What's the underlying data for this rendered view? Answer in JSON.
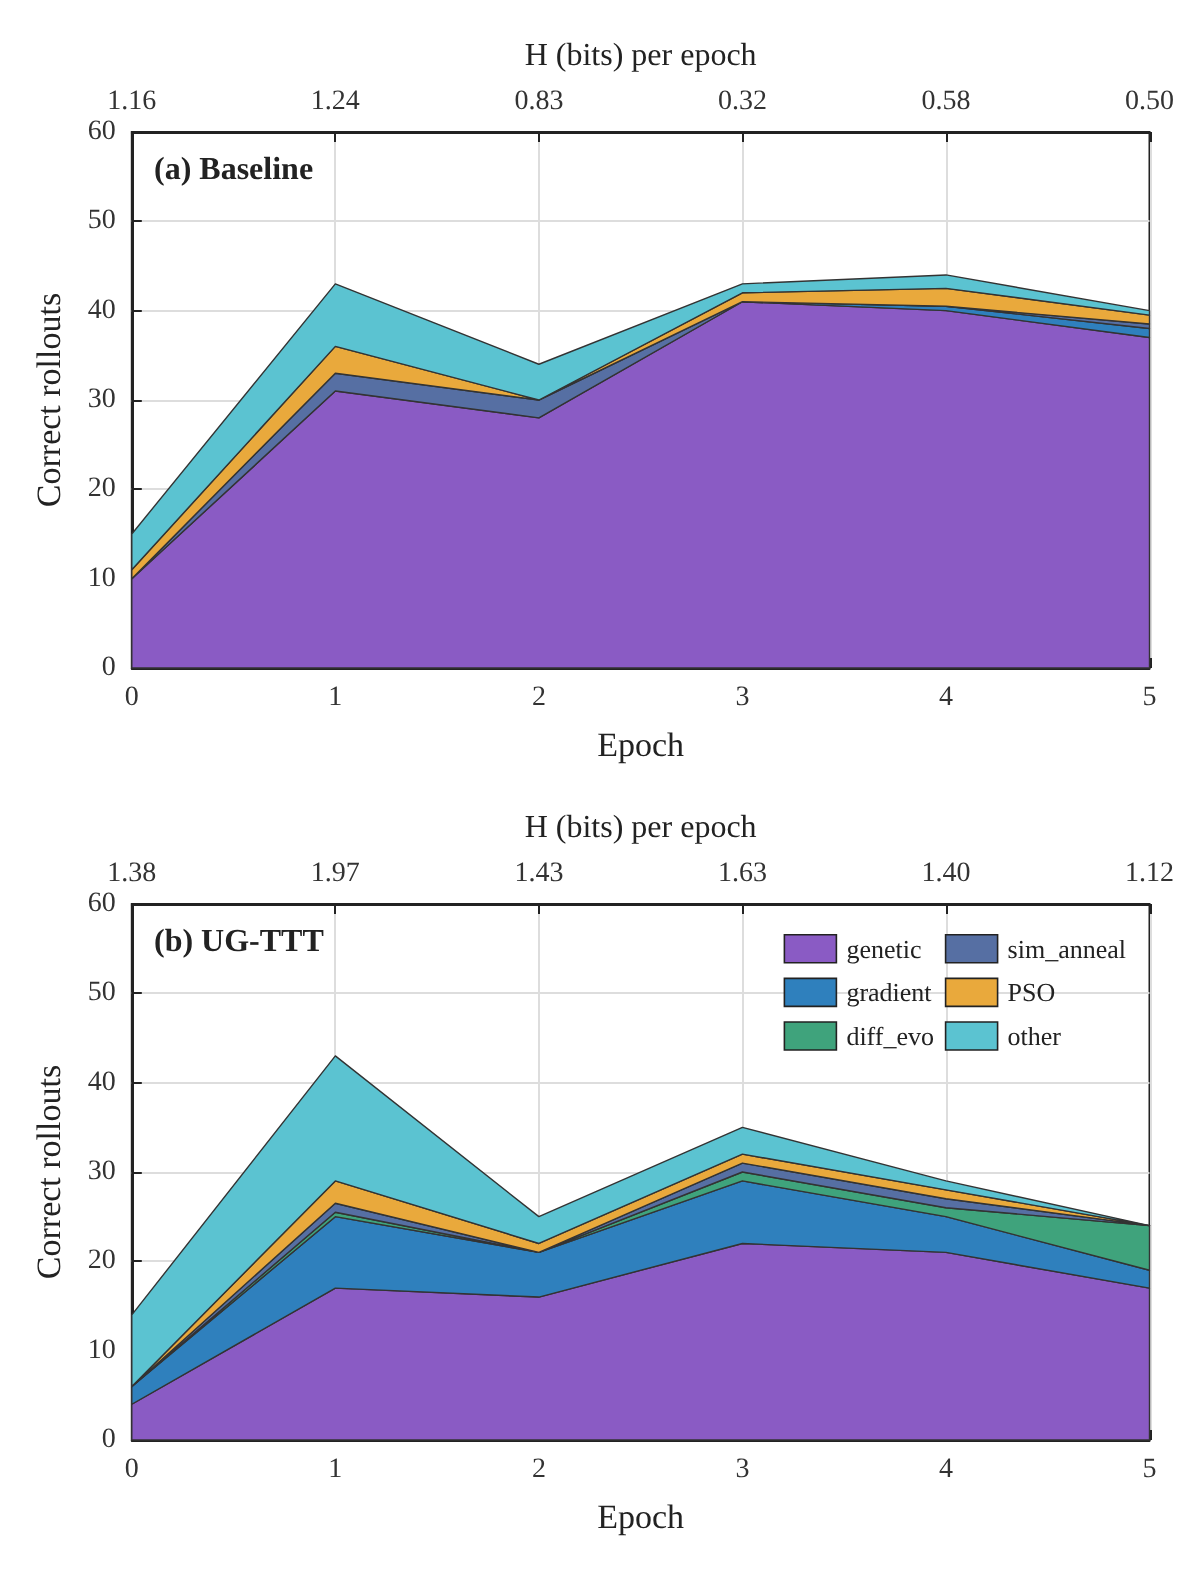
{
  "chart_data": [
    {
      "type": "area",
      "title": "(a) Baseline",
      "xlabel": "Epoch",
      "ylabel": "Correct rollouts",
      "x2label": "H (bits) per epoch",
      "stacked": true,
      "grid": true,
      "legend": false,
      "x": [
        0,
        1,
        2,
        3,
        4,
        5
      ],
      "xlim": [
        0,
        5
      ],
      "xticks": [
        0,
        1,
        2,
        3,
        4,
        5
      ],
      "ylim": [
        0,
        60
      ],
      "yticks": [
        0,
        10,
        20,
        30,
        40,
        50,
        60
      ],
      "annotations": [
        "1.16",
        "1.24",
        "0.83",
        "0.32",
        "0.58",
        "0.50"
      ],
      "series": [
        {
          "color": "#8a5bc4",
          "values": [
            10,
            31,
            28,
            41,
            40,
            37
          ]
        },
        {
          "color": "#2f80bd",
          "values": [
            null,
            null,
            null,
            0,
            0.5,
            1
          ]
        },
        {
          "color": "#566fa3",
          "values": [
            0,
            2,
            2,
            0,
            0,
            0.5
          ]
        },
        {
          "color": "#e9a93c",
          "values": [
            1,
            3,
            0,
            1,
            2,
            1
          ]
        },
        {
          "color": "#5bc3d1",
          "values": [
            4,
            7,
            4,
            1,
            1.5,
            0.5
          ]
        }
      ]
    },
    {
      "type": "area",
      "title": "(b) UG-TTT",
      "xlabel": "Epoch",
      "ylabel": "Correct rollouts",
      "x2label": "H (bits) per epoch",
      "stacked": true,
      "grid": true,
      "legend": "top right",
      "x": [
        0,
        1,
        2,
        3,
        4,
        5
      ],
      "xlim": [
        0,
        5
      ],
      "xticks": [
        0,
        1,
        2,
        3,
        4,
        5
      ],
      "ylim": [
        0,
        60
      ],
      "yticks": [
        0,
        10,
        20,
        30,
        40,
        50,
        60
      ],
      "annotations": [
        "1.38",
        "1.97",
        "1.43",
        "1.63",
        "1.40",
        "1.12"
      ],
      "series": [
        {
          "name": "genetic",
          "color": "#8a5bc4",
          "values": [
            4,
            17,
            16,
            22,
            21,
            17
          ]
        },
        {
          "name": "gradient",
          "color": "#2f80bd",
          "values": [
            2,
            8,
            5,
            7,
            4,
            2
          ]
        },
        {
          "name": "diff_evo",
          "color": "#3fa37c",
          "values": [
            0,
            0.5,
            0,
            1,
            1,
            5
          ]
        },
        {
          "name": "sim_anneal",
          "color": "#566fa3",
          "values": [
            0,
            1,
            0,
            1,
            1,
            0
          ]
        },
        {
          "name": "PSO",
          "color": "#e9a93c",
          "values": [
            0,
            2.5,
            1,
            1,
            1,
            0
          ]
        },
        {
          "name": "other",
          "color": "#5bc3d1",
          "values": [
            8,
            14,
            3,
            3,
            1,
            0
          ]
        }
      ]
    }
  ]
}
